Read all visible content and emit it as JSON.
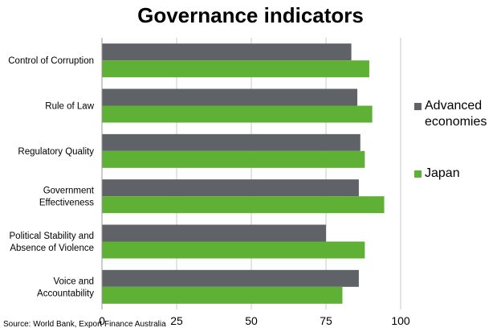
{
  "chart_data": {
    "type": "bar",
    "orientation": "horizontal",
    "title": "Governance indicators",
    "categories": [
      "Control of Corruption",
      "Rule of Law",
      "Regulatory Quality",
      "Government Effectiveness",
      "Political Stability and Absence of Violence",
      "Voice and Accountability"
    ],
    "category_label_lines": [
      [
        "Control of Corruption"
      ],
      [
        "Rule of Law"
      ],
      [
        "Regulatory Quality"
      ],
      [
        "Government",
        "Effectiveness"
      ],
      [
        "Political Stability and",
        "Absence of Violence"
      ],
      [
        "Voice and",
        "Accountability"
      ]
    ],
    "series": [
      {
        "name": "Advanced economies",
        "color": "#5f6368",
        "values": [
          83.5,
          85.5,
          86.5,
          86,
          75,
          86
        ]
      },
      {
        "name": "Japan",
        "color": "#5fb135",
        "values": [
          89.5,
          90.5,
          88,
          94.5,
          88,
          80.5
        ]
      }
    ],
    "xlim": [
      0,
      100
    ],
    "x_ticks": [
      "0",
      "25",
      "50",
      "75",
      "100"
    ],
    "grid": true,
    "legend_position": "right",
    "source": "Source: World Bank, Export Finance Australia"
  }
}
